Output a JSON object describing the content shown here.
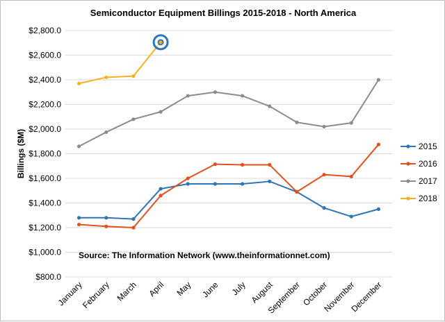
{
  "chart_data": {
    "type": "line",
    "title": "Semiconductor Equipment Billings 2015-2018 - North America",
    "ylabel": "Billings ($M)",
    "xlabel": "",
    "categories": [
      "January",
      "February",
      "March",
      "April",
      "May",
      "June",
      "July",
      "August",
      "September",
      "October",
      "November",
      "December"
    ],
    "yticks": [
      "$800.0",
      "$1,000.0",
      "$1,200.0",
      "$1,400.0",
      "$1,600.0",
      "$1,800.0",
      "$2,000.0",
      "$2,200.0",
      "$2,400.0",
      "$2,600.0",
      "$2,800.0"
    ],
    "ylim": [
      800,
      2800
    ],
    "grid": "horizontal",
    "legend_position": "right",
    "series": [
      {
        "name": "2015",
        "color": "#2e75b6",
        "values": [
          1280,
          1280,
          1270,
          1515,
          1555,
          1555,
          1555,
          1575,
          1490,
          1360,
          1290,
          1350
        ]
      },
      {
        "name": "2016",
        "color": "#e2501b",
        "values": [
          1225,
          1210,
          1200,
          1460,
          1600,
          1715,
          1710,
          1710,
          1490,
          1630,
          1615,
          1875
        ]
      },
      {
        "name": "2017",
        "color": "#8c8c8c",
        "values": [
          1860,
          1975,
          2080,
          2140,
          2270,
          2300,
          2270,
          2185,
          2055,
          2020,
          2050,
          2400
        ]
      },
      {
        "name": "2018",
        "color": "#f7b11d",
        "values": [
          2370,
          2420,
          2430,
          2705,
          null,
          null,
          null,
          null,
          null,
          null,
          null,
          null
        ]
      }
    ],
    "highlight": {
      "series": "2018",
      "category": "April",
      "ring_colors": [
        "#2e75b6",
        "#ffffff"
      ]
    },
    "annotation": "Source: The Information Network (www.theinformationnet.com)"
  }
}
